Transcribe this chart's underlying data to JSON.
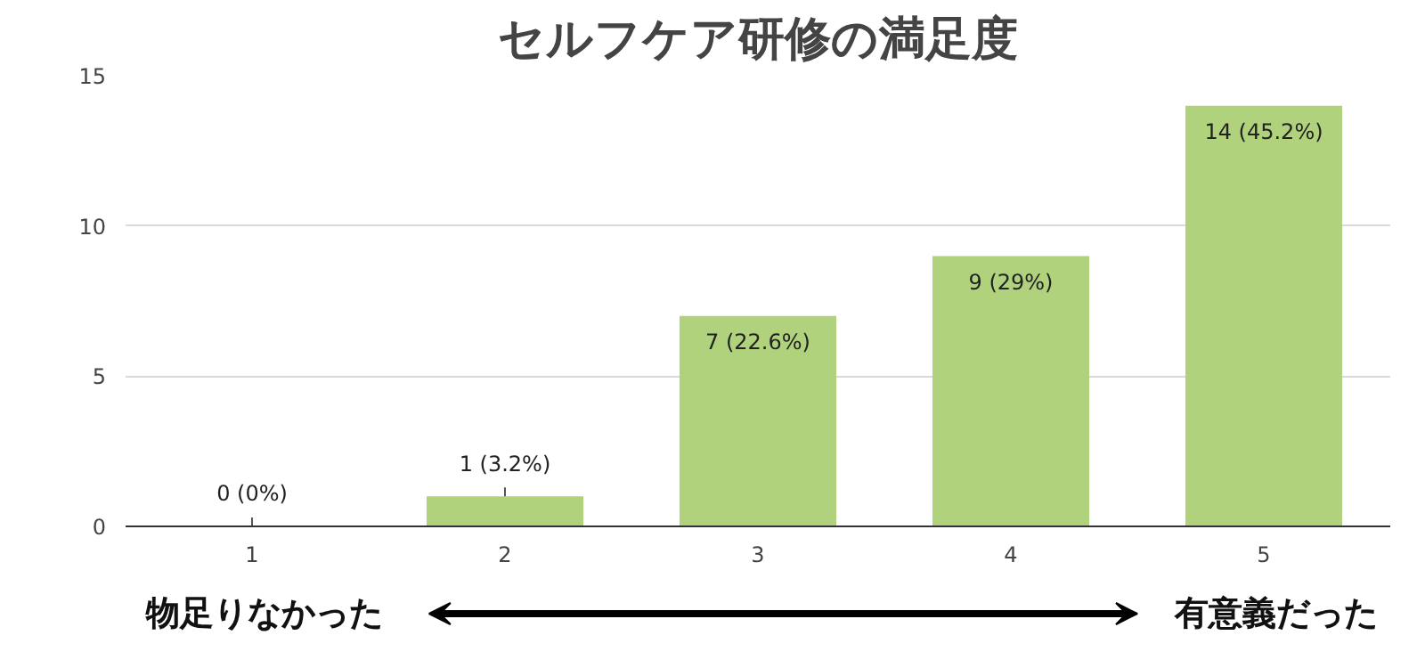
{
  "chart_data": {
    "type": "bar",
    "title": "セルフケア研修の満足度",
    "categories": [
      "1",
      "2",
      "3",
      "4",
      "5"
    ],
    "values": [
      0,
      1,
      7,
      9,
      14
    ],
    "value_labels": [
      "0 (0%)",
      "1 (3.2%)",
      "7 (22.6%)",
      "9 (29%)",
      "14 (45.2%)"
    ],
    "color": "#b1d27d",
    "ylim": [
      0,
      15
    ],
    "yticks": [
      0,
      5,
      10,
      15
    ],
    "grid": "y",
    "annotations": [
      "物足りなかった",
      "有意義だった"
    ]
  }
}
